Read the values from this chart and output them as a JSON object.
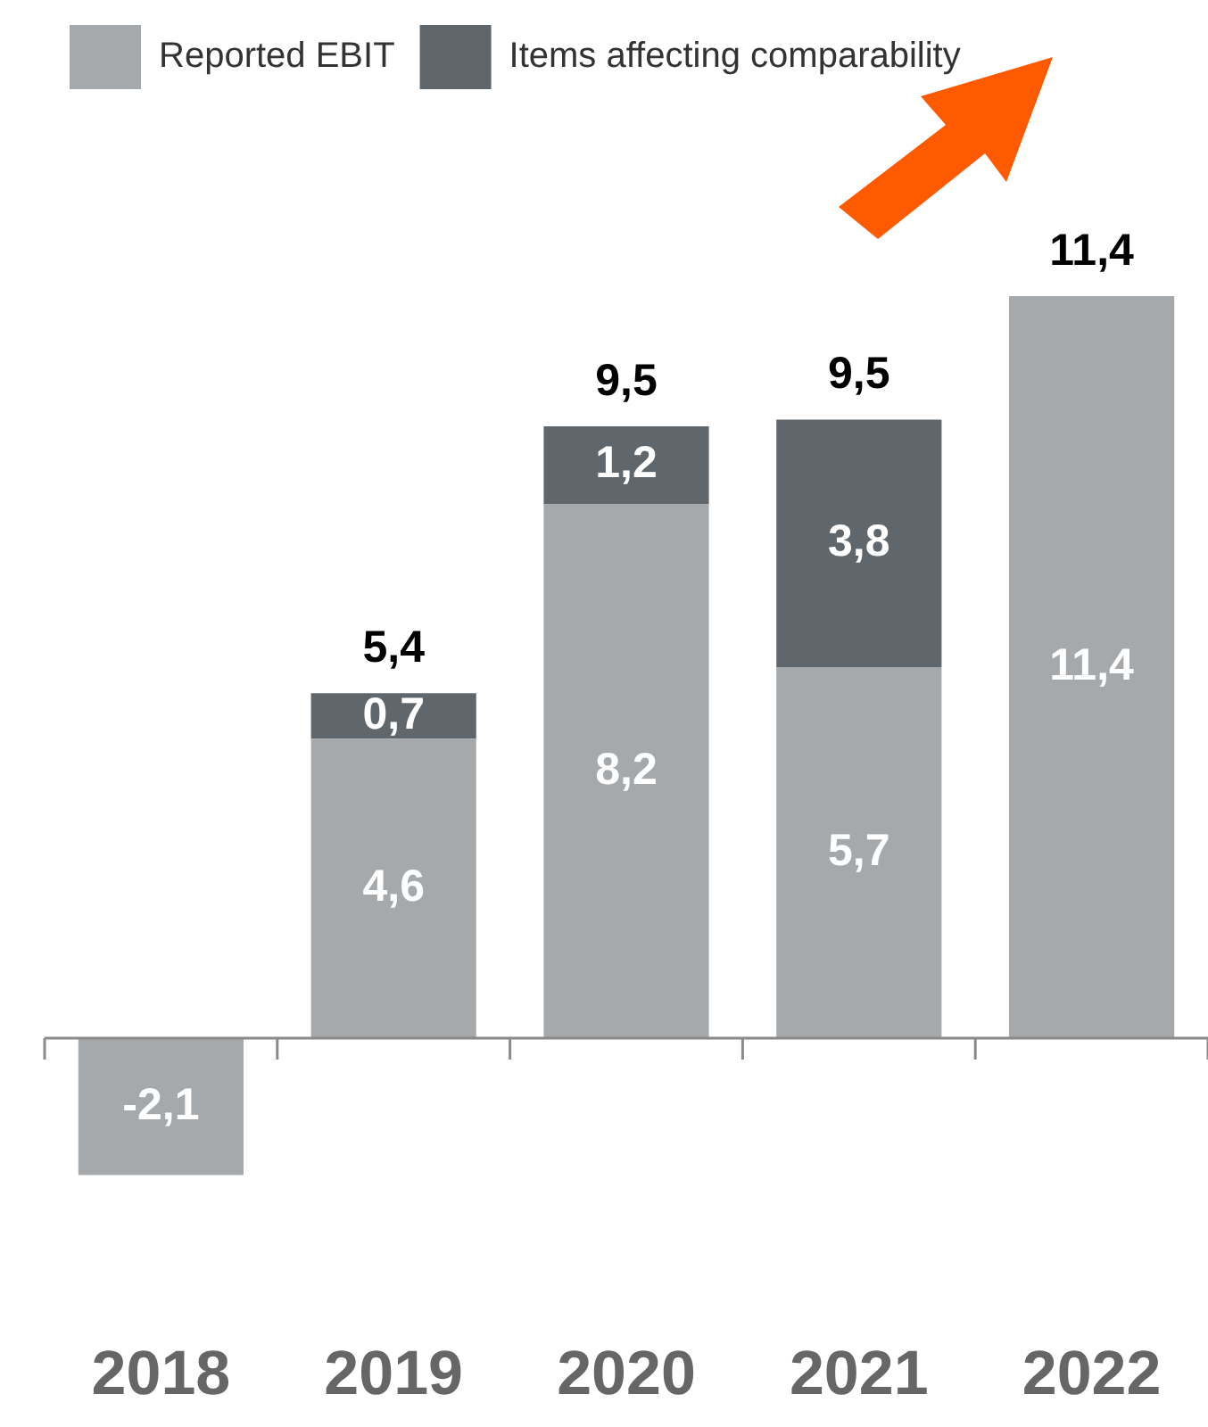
{
  "chart_data": {
    "type": "bar",
    "stacked": true,
    "legend": "top left",
    "categories": [
      "2018",
      "2019",
      "2020",
      "2021",
      "2022"
    ],
    "series": [
      {
        "name": "Reported EBIT",
        "color": "#a5a9ac",
        "values": [
          -2.1,
          4.6,
          8.2,
          5.7,
          11.4
        ],
        "value_labels": [
          "-2,1",
          "4,6",
          "8,2",
          "5,7",
          "11,4"
        ]
      },
      {
        "name": "Items affecting comparability",
        "color": "#5f676d",
        "values": [
          null,
          0.7,
          1.2,
          3.8,
          null
        ],
        "value_labels": [
          null,
          "0,7",
          "1,2",
          "3,8",
          null
        ]
      }
    ],
    "totals": [
      null,
      "5,4",
      "9,5",
      "9,5",
      "11,4"
    ]
  }
}
